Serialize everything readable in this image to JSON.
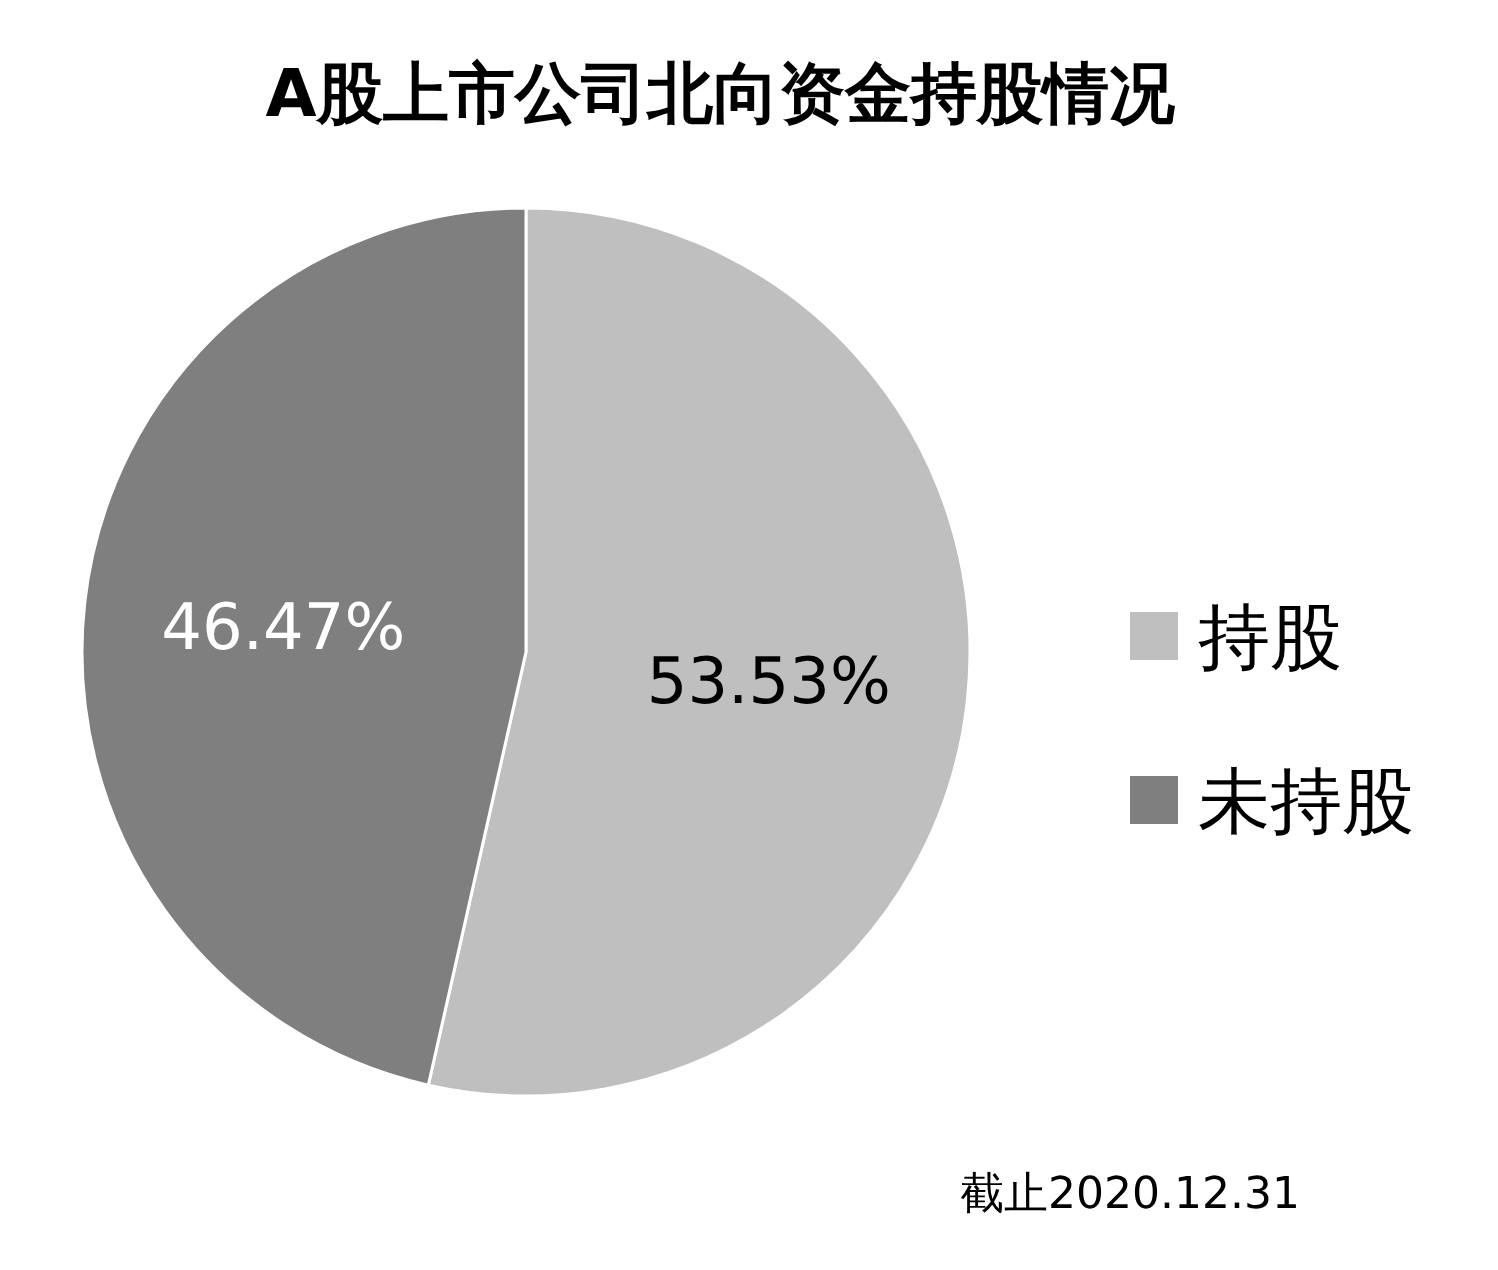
{
  "chart_data": {
    "type": "pie",
    "title": "A股上市公司北向资金持股情况",
    "categories": [
      "持股",
      "未持股"
    ],
    "values": [
      53.53,
      46.47
    ],
    "colors": [
      "#bfbfbf",
      "#7f7f7f"
    ],
    "value_labels": [
      "53.53%",
      "46.47%"
    ],
    "legend": "right",
    "annotations": [
      "截止2020.12.31"
    ]
  }
}
